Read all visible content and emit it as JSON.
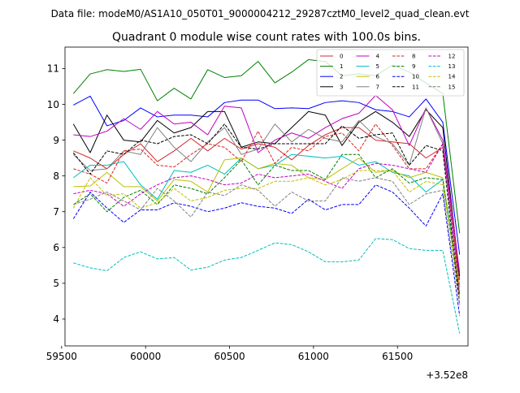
{
  "suptitle": "Data file: modeM0/AS1A10_050T01_9000004212_29287cztM0_level2_quad_clean.evt",
  "chart_data": {
    "type": "line",
    "title": "Quadrant 0 module wise count rates with 100.0s bins.",
    "xlabel": "",
    "ylabel": "",
    "x_offset_label": "+3.52e8",
    "xlim": [
      59520,
      61920
    ],
    "ylim": [
      3.25,
      11.6
    ],
    "x_ticks": [
      59500,
      60000,
      60500,
      61000,
      61500
    ],
    "x_tick_labels": [
      "59500",
      "60000",
      "60500",
      "61000",
      "61500"
    ],
    "y_ticks": [
      4,
      5,
      6,
      7,
      8,
      9,
      10,
      11
    ],
    "y_tick_labels": [
      "4",
      "5",
      "6",
      "7",
      "8",
      "9",
      "10",
      "11"
    ],
    "grid": false,
    "legend_position": "top-right",
    "x": [
      59570,
      59670,
      59770,
      59870,
      59970,
      60070,
      60170,
      60270,
      60370,
      60470,
      60570,
      60670,
      60770,
      60870,
      60970,
      61070,
      61170,
      61270,
      61370,
      61470,
      61570,
      61670,
      61770,
      61870
    ],
    "series": [
      {
        "name": "0",
        "color": "#d62728",
        "style": "solid",
        "values": [
          8.7,
          8.5,
          8.2,
          8.6,
          8.9,
          8.4,
          8.7,
          9.05,
          8.7,
          9.05,
          8.75,
          8.9,
          8.8,
          8.45,
          8.85,
          9.15,
          9.35,
          9.35,
          9.0,
          8.95,
          8.9,
          8.5,
          8.8,
          5.1
        ]
      },
      {
        "name": "1",
        "color": "#008000",
        "style": "solid",
        "values": [
          10.3,
          10.85,
          10.97,
          10.92,
          10.98,
          10.1,
          10.45,
          10.15,
          10.97,
          10.75,
          10.8,
          11.2,
          10.6,
          10.9,
          11.25,
          11.2,
          10.8,
          10.85,
          10.8,
          11.1,
          10.9,
          10.6,
          10.3,
          6.4
        ]
      },
      {
        "name": "2",
        "color": "#0000ff",
        "style": "solid",
        "values": [
          9.98,
          10.23,
          9.4,
          9.55,
          9.9,
          9.65,
          9.7,
          9.7,
          9.65,
          10.05,
          10.12,
          10.12,
          9.88,
          9.9,
          9.88,
          10.05,
          10.1,
          10.05,
          9.85,
          9.8,
          9.65,
          10.15,
          9.5,
          5.8
        ]
      },
      {
        "name": "3",
        "color": "#000000",
        "style": "solid",
        "values": [
          9.45,
          8.65,
          9.7,
          9.0,
          8.95,
          9.55,
          9.2,
          9.35,
          9.8,
          9.8,
          8.8,
          8.95,
          8.9,
          9.35,
          9.8,
          9.7,
          8.85,
          9.5,
          9.8,
          9.5,
          9.1,
          9.85,
          9.35,
          5.2
        ]
      },
      {
        "name": "4",
        "color": "#bf00bf",
        "style": "solid",
        "values": [
          9.15,
          9.1,
          9.25,
          9.6,
          9.3,
          9.8,
          9.45,
          9.5,
          9.15,
          9.95,
          9.9,
          8.65,
          9.0,
          9.2,
          9.05,
          9.35,
          9.6,
          9.75,
          10.25,
          9.85,
          8.85,
          9.9,
          9.0,
          5.3
        ]
      },
      {
        "name": "5",
        "color": "#00bfbf",
        "style": "solid",
        "values": [
          7.95,
          8.3,
          8.3,
          8.4,
          7.75,
          7.35,
          8.15,
          8.1,
          8.3,
          8.05,
          8.5,
          8.2,
          8.3,
          8.6,
          8.55,
          8.5,
          8.55,
          8.3,
          8.4,
          8.1,
          8.0,
          7.55,
          7.9,
          4.9
        ]
      },
      {
        "name": "6",
        "color": "#bfbf00",
        "style": "solid",
        "values": [
          7.7,
          7.72,
          8.1,
          7.7,
          7.7,
          7.3,
          7.9,
          7.85,
          7.55,
          8.45,
          8.5,
          8.2,
          8.35,
          8.3,
          7.95,
          7.9,
          8.2,
          8.5,
          8.1,
          8.15,
          7.95,
          8.1,
          7.95,
          4.6
        ]
      },
      {
        "name": "7",
        "color": "#808080",
        "style": "solid",
        "values": [
          8.6,
          8.15,
          8.2,
          8.7,
          8.6,
          9.35,
          8.8,
          8.4,
          8.95,
          9.35,
          8.6,
          8.75,
          9.45,
          8.95,
          9.3,
          9.05,
          8.95,
          9.55,
          9.1,
          8.9,
          8.3,
          9.9,
          8.9,
          4.9
        ]
      },
      {
        "name": "8",
        "color": "#d62728",
        "style": "dashed",
        "values": [
          8.2,
          8.05,
          7.8,
          8.7,
          8.75,
          8.3,
          8.25,
          8.6,
          8.9,
          8.8,
          8.4,
          9.25,
          8.35,
          8.8,
          8.7,
          9.1,
          9.2,
          8.7,
          9.45,
          8.85,
          8.2,
          8.2,
          8.9,
          4.9
        ]
      },
      {
        "name": "9",
        "color": "#008000",
        "style": "dashed",
        "values": [
          7.2,
          7.5,
          7.0,
          7.4,
          7.6,
          7.2,
          7.75,
          7.65,
          7.5,
          7.95,
          8.45,
          7.75,
          8.3,
          8.15,
          8.15,
          7.9,
          8.6,
          8.6,
          7.95,
          8.2,
          7.8,
          7.95,
          7.9,
          4.7
        ]
      },
      {
        "name": "10",
        "color": "#0000ff",
        "style": "dashed",
        "values": [
          6.8,
          7.55,
          7.1,
          6.7,
          7.05,
          7.05,
          7.25,
          7.15,
          7.0,
          7.1,
          7.25,
          7.15,
          7.1,
          6.95,
          7.35,
          7.05,
          7.2,
          7.2,
          7.75,
          7.55,
          7.1,
          6.6,
          7.5,
          4.1
        ]
      },
      {
        "name": "11",
        "color": "#000000",
        "style": "dashed",
        "values": [
          8.65,
          8.05,
          8.7,
          8.6,
          9.0,
          8.9,
          9.1,
          9.15,
          8.9,
          9.45,
          8.8,
          8.75,
          8.9,
          8.9,
          8.9,
          8.9,
          9.4,
          9.05,
          9.15,
          9.2,
          8.3,
          8.85,
          8.7,
          4.4
        ]
      },
      {
        "name": "12",
        "color": "#bf00bf",
        "style": "dashed",
        "values": [
          7.5,
          7.6,
          7.5,
          7.15,
          7.5,
          7.75,
          7.95,
          8.0,
          7.9,
          7.75,
          7.8,
          8.05,
          7.95,
          8.0,
          8.05,
          7.85,
          7.65,
          8.2,
          8.35,
          8.3,
          8.2,
          8.1,
          8.9,
          4.7
        ]
      },
      {
        "name": "13",
        "color": "#00bfbf",
        "style": "dashed",
        "values": [
          5.57,
          5.43,
          5.35,
          5.72,
          5.88,
          5.68,
          5.72,
          5.37,
          5.45,
          5.65,
          5.72,
          5.92,
          6.13,
          6.08,
          5.88,
          5.6,
          5.6,
          5.65,
          6.25,
          6.22,
          5.97,
          5.92,
          5.92,
          3.6
        ]
      },
      {
        "name": "14",
        "color": "#bfbf00",
        "style": "dashed",
        "values": [
          7.1,
          7.95,
          7.45,
          7.5,
          7.1,
          7.25,
          7.65,
          7.3,
          7.4,
          7.6,
          7.65,
          7.65,
          7.85,
          7.85,
          7.95,
          7.75,
          7.9,
          8.15,
          8.15,
          8.15,
          7.55,
          7.85,
          7.75,
          4.9
        ]
      },
      {
        "name": "15",
        "color": "#808080",
        "style": "dashed",
        "values": [
          7.2,
          7.35,
          7.55,
          7.3,
          7.05,
          7.65,
          7.3,
          6.85,
          7.55,
          7.45,
          7.75,
          7.6,
          7.15,
          7.55,
          7.3,
          7.3,
          7.95,
          7.85,
          7.95,
          7.85,
          7.2,
          7.5,
          7.6,
          4.4
        ]
      }
    ]
  }
}
